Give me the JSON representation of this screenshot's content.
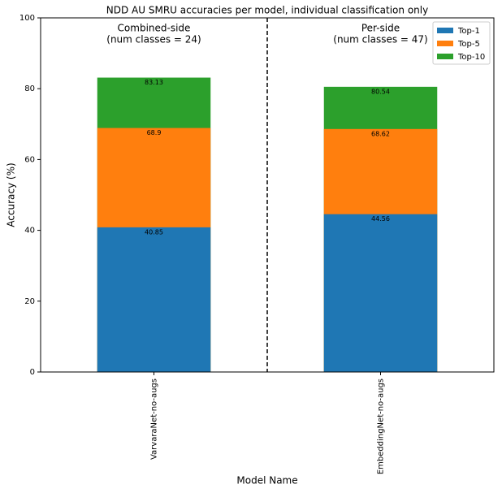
{
  "chart_data": {
    "type": "bar",
    "overlap": true,
    "title": "NDD AU SMRU accuracies per model, individual classification only",
    "xlabel": "Model Name",
    "ylabel": "Accuracy (%)",
    "categories": [
      "VarvaraNet-no-augs",
      "EmbeddingNet-no-augs"
    ],
    "series": [
      {
        "name": "Top-1",
        "color": "#1f77b4",
        "values": [
          40.85,
          44.56
        ]
      },
      {
        "name": "Top-5",
        "color": "#ff7f0e",
        "values": [
          68.9,
          68.62
        ]
      },
      {
        "name": "Top-10",
        "color": "#2ca02c",
        "values": [
          83.13,
          80.54
        ]
      }
    ],
    "annotations": [
      [
        "Combined-side",
        "(num classes = 24)"
      ],
      [
        "Per-side",
        "(num classes = 47)"
      ]
    ],
    "ylim": [
      0,
      100
    ],
    "yticks": [
      0,
      20,
      40,
      60,
      80,
      100
    ],
    "legend": "upper right"
  }
}
